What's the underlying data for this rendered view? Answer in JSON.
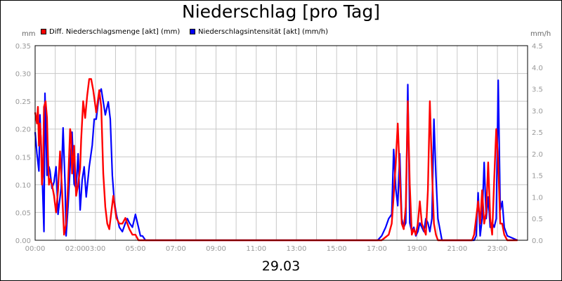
{
  "chart_data": {
    "type": "line",
    "title": "Niederschlag [pro Tag]",
    "subtitle": "29.03",
    "ylabel_left": "mm",
    "ylabel_right": "mm/h",
    "x_ticks": [
      "00:00",
      "02:00",
      "03:00",
      "05:00",
      "07:00",
      "09:00",
      "11:00",
      "13:00",
      "15:00",
      "17:00",
      "19:00",
      "21:00",
      "23:00"
    ],
    "x_tick_hours": [
      0,
      2,
      3,
      5,
      7,
      9,
      11,
      13,
      15,
      17,
      19,
      21,
      23
    ],
    "xlim": [
      0,
      24.5
    ],
    "y_left_ticks": [
      "0.00",
      "0.05",
      "0.10",
      "0.15",
      "0.20",
      "0.25",
      "0.30",
      "0.35"
    ],
    "y_right_ticks": [
      "0.0",
      "0.5",
      "1.0",
      "1.5",
      "2.0",
      "2.5",
      "3.0",
      "3.5",
      "4.0",
      "4.5"
    ],
    "ylim_left": [
      0,
      0.35
    ],
    "ylim_right": [
      0,
      4.5
    ],
    "grid": true,
    "legend_position": "top-left",
    "series": [
      {
        "name": "Diff. Niederschlagsmenge [akt] (mm)",
        "axis": "left",
        "color": "#ff0000",
        "x": [
          0.0,
          0.09,
          0.14,
          0.19,
          0.24,
          0.29,
          0.34,
          0.39,
          0.44,
          0.52,
          0.59,
          0.64,
          0.69,
          0.74,
          0.84,
          0.94,
          1.04,
          1.14,
          1.24,
          1.34,
          1.44,
          1.54,
          1.64,
          1.74,
          1.79,
          1.84,
          1.94,
          2.04,
          2.14,
          2.24,
          2.29,
          2.39,
          2.49,
          2.59,
          2.69,
          2.79,
          2.89,
          3.04,
          3.19,
          3.29,
          3.39,
          3.49,
          3.59,
          3.69,
          3.79,
          3.89,
          4.04,
          4.19,
          4.34,
          4.49,
          4.59,
          4.69,
          4.84,
          4.99,
          5.14,
          5.29,
          5.44,
          5.59,
          17.24,
          17.59,
          17.74,
          17.84,
          17.94,
          18.04,
          18.14,
          18.24,
          18.34,
          18.44,
          18.54,
          18.64,
          18.74,
          18.84,
          18.94,
          19.04,
          19.14,
          19.24,
          19.34,
          19.44,
          19.54,
          19.64,
          19.74,
          19.84,
          19.94,
          20.04,
          20.19,
          20.44,
          21.74,
          21.84,
          21.94,
          22.04,
          22.14,
          22.24,
          22.34,
          22.44,
          22.54,
          22.64,
          22.74,
          22.84,
          22.94,
          23.04,
          23.14,
          23.24,
          23.34,
          23.49,
          24.0
        ],
        "values": [
          0.23,
          0.21,
          0.24,
          0.17,
          0.21,
          0.18,
          0.1,
          0.12,
          0.24,
          0.25,
          0.22,
          0.15,
          0.1,
          0.11,
          0.1,
          0.08,
          0.05,
          0.09,
          0.16,
          0.09,
          0.01,
          0.03,
          0.1,
          0.2,
          0.19,
          0.12,
          0.17,
          0.08,
          0.1,
          0.13,
          0.18,
          0.25,
          0.22,
          0.26,
          0.29,
          0.29,
          0.27,
          0.23,
          0.27,
          0.24,
          0.12,
          0.06,
          0.03,
          0.02,
          0.05,
          0.08,
          0.04,
          0.03,
          0.03,
          0.04,
          0.03,
          0.02,
          0.01,
          0.01,
          0.0,
          0.0,
          0.0,
          0.0,
          0.0,
          0.01,
          0.03,
          0.08,
          0.14,
          0.21,
          0.12,
          0.03,
          0.02,
          0.06,
          0.25,
          0.1,
          0.01,
          0.02,
          0.01,
          0.03,
          0.07,
          0.03,
          0.02,
          0.01,
          0.09,
          0.25,
          0.13,
          0.03,
          0.01,
          0.0,
          0.0,
          0.0,
          0.0,
          0.01,
          0.04,
          0.07,
          0.03,
          0.09,
          0.03,
          0.05,
          0.14,
          0.04,
          0.01,
          0.11,
          0.2,
          0.14,
          0.03,
          0.03,
          0.01,
          0.0,
          0.0
        ]
      },
      {
        "name": "Niederschlagsintensität [akt] (mm/h)",
        "axis": "right",
        "color": "#0000ff",
        "x": [
          0.0,
          0.09,
          0.19,
          0.24,
          0.34,
          0.44,
          0.49,
          0.59,
          0.69,
          0.74,
          0.84,
          0.94,
          1.04,
          1.14,
          1.24,
          1.29,
          1.39,
          1.49,
          1.54,
          1.64,
          1.74,
          1.84,
          1.94,
          2.04,
          2.14,
          2.24,
          2.34,
          2.44,
          2.54,
          2.69,
          2.84,
          2.94,
          3.04,
          3.19,
          3.29,
          3.39,
          3.49,
          3.64,
          3.74,
          3.84,
          3.94,
          4.04,
          4.19,
          4.34,
          4.49,
          4.59,
          4.69,
          4.84,
          4.99,
          5.14,
          5.24,
          5.34,
          5.49,
          17.04,
          17.24,
          17.44,
          17.59,
          17.74,
          17.84,
          17.94,
          18.04,
          18.14,
          18.24,
          18.34,
          18.44,
          18.54,
          18.64,
          18.74,
          18.84,
          18.94,
          19.04,
          19.14,
          19.24,
          19.34,
          19.44,
          19.54,
          19.64,
          19.74,
          19.84,
          19.94,
          20.04,
          20.24,
          21.84,
          21.94,
          22.04,
          22.14,
          22.24,
          22.34,
          22.44,
          22.54,
          22.64,
          22.74,
          22.84,
          22.94,
          23.04,
          23.14,
          23.24,
          23.34,
          23.49,
          24.0
        ],
        "values": [
          2.5,
          2.0,
          1.6,
          2.9,
          1.7,
          0.2,
          3.4,
          1.5,
          1.7,
          1.6,
          1.2,
          1.35,
          1.7,
          0.6,
          1.0,
          1.2,
          2.6,
          1.3,
          0.1,
          0.8,
          1.7,
          2.5,
          1.3,
          1.2,
          2.0,
          0.7,
          1.4,
          1.7,
          1.0,
          1.7,
          2.2,
          2.8,
          2.8,
          3.4,
          3.5,
          3.2,
          2.9,
          3.2,
          2.8,
          1.5,
          0.9,
          0.6,
          0.3,
          0.2,
          0.4,
          0.5,
          0.4,
          0.3,
          0.6,
          0.3,
          0.1,
          0.1,
          0.0,
          0.0,
          0.1,
          0.3,
          0.5,
          0.6,
          2.1,
          1.2,
          0.8,
          2.0,
          0.5,
          0.3,
          0.4,
          3.6,
          0.4,
          0.2,
          0.3,
          0.1,
          0.2,
          0.4,
          0.3,
          0.2,
          0.5,
          0.4,
          0.2,
          0.5,
          2.8,
          1.5,
          0.5,
          0.0,
          0.0,
          0.1,
          1.1,
          0.1,
          0.5,
          1.8,
          0.5,
          1.0,
          0.3,
          0.4,
          0.3,
          0.5,
          3.7,
          0.7,
          0.9,
          0.3,
          0.1,
          0.0
        ]
      }
    ]
  }
}
